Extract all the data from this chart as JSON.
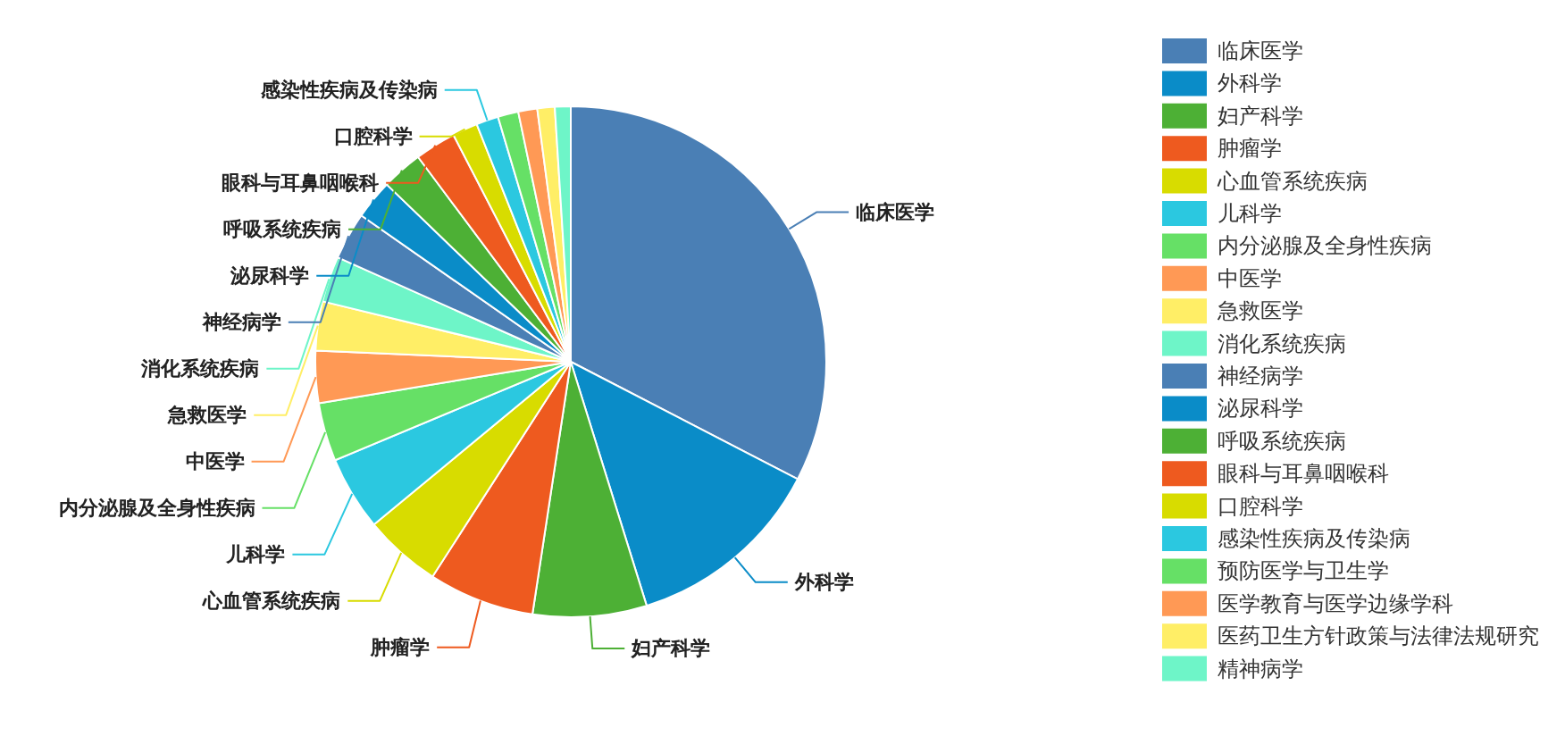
{
  "chart_data": {
    "type": "pie",
    "legend": "right",
    "categories": [
      "临床医学",
      "外科学",
      "妇产科学",
      "肿瘤学",
      "心血管系统疾病",
      "儿科学",
      "内分泌腺及全身性疾病",
      "中医学",
      "急救医学",
      "消化系统疾病",
      "神经病学",
      "泌尿科学",
      "呼吸系统疾病",
      "眼科与耳鼻咽喉科",
      "口腔科学",
      "感染性疾病及传染病",
      "预防医学与卫生学",
      "医学教育与医学边缘学科",
      "医药卫生方针政策与法律法规研究",
      "精神病学"
    ],
    "values": [
      32.6,
      12.6,
      7.2,
      6.7,
      4.9,
      4.7,
      3.7,
      3.3,
      3.1,
      2.9,
      3.0,
      2.5,
      2.6,
      2.6,
      1.6,
      1.4,
      1.3,
      1.2,
      1.1,
      1.0
    ],
    "colors": [
      "#4a7fb5",
      "#0a8cc8",
      "#4db035",
      "#ee5a1f",
      "#d8dc00",
      "#2bc8e0",
      "#66e066",
      "#ff9955",
      "#ffee66",
      "#6ef5c8",
      "#4a7fb5",
      "#0a8cc8",
      "#4db035",
      "#ee5a1f",
      "#d8dc00",
      "#2bc8e0",
      "#66e066",
      "#ff9955",
      "#ffee66",
      "#6ef5c8"
    ]
  }
}
